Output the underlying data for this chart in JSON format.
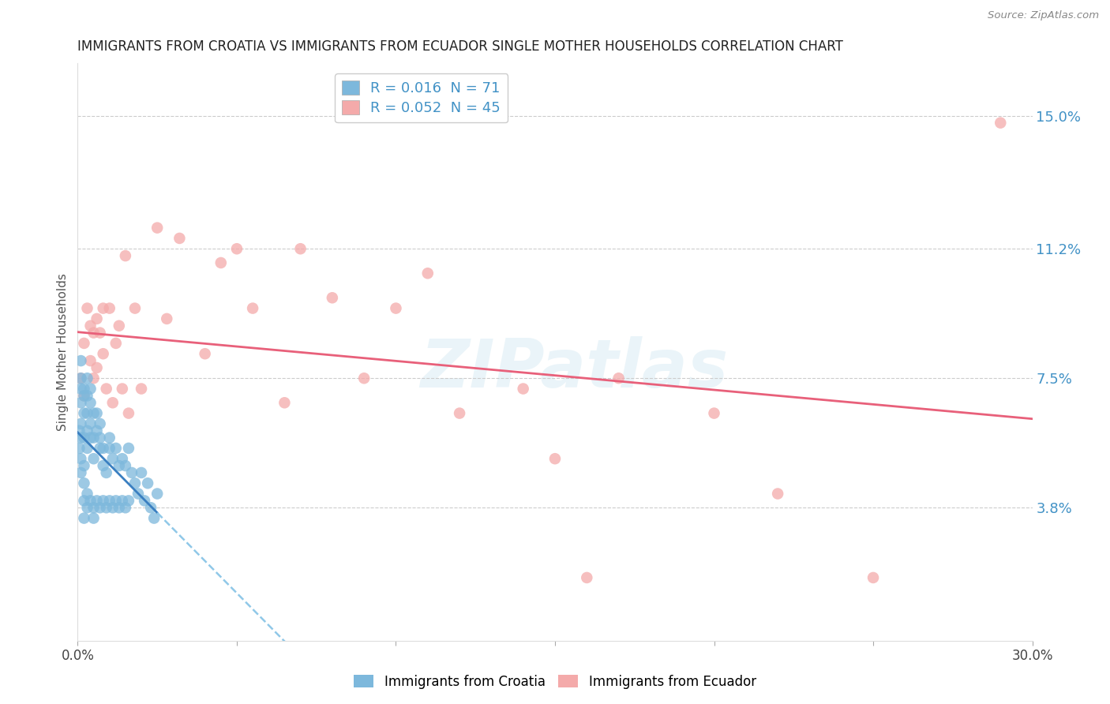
{
  "title": "IMMIGRANTS FROM CROATIA VS IMMIGRANTS FROM ECUADOR SINGLE MOTHER HOUSEHOLDS CORRELATION CHART",
  "source": "Source: ZipAtlas.com",
  "ylabel": "Single Mother Households",
  "xlim": [
    0.0,
    0.3
  ],
  "ylim": [
    0.0,
    0.165
  ],
  "ytick_vals": [
    0.038,
    0.075,
    0.112,
    0.15
  ],
  "ytick_labels": [
    "3.8%",
    "7.5%",
    "11.2%",
    "15.0%"
  ],
  "xtick_vals": [
    0.0,
    0.05,
    0.1,
    0.15,
    0.2,
    0.25,
    0.3
  ],
  "xtick_labels": [
    "0.0%",
    "",
    "",
    "",
    "",
    "",
    "30.0%"
  ],
  "croatia_color": "#7db8dc",
  "ecuador_color": "#f4aaaa",
  "croatia_trend_color": "#3a7fc1",
  "ecuador_trend_color": "#e8607a",
  "dashed_color": "#90c8e8",
  "R_croatia": 0.016,
  "N_croatia": 71,
  "R_ecuador": 0.052,
  "N_ecuador": 45,
  "watermark": "ZIPatlas",
  "legend_blue_label": "R = 0.016  N = 71",
  "legend_pink_label": "R = 0.052  N = 45",
  "bottom_label_croatia": "Immigrants from Croatia",
  "bottom_label_ecuador": "Immigrants from Ecuador",
  "croatia_x": [
    0.0005,
    0.0005,
    0.001,
    0.001,
    0.001,
    0.001,
    0.001,
    0.001,
    0.001,
    0.001,
    0.002,
    0.002,
    0.002,
    0.002,
    0.002,
    0.002,
    0.002,
    0.002,
    0.003,
    0.003,
    0.003,
    0.003,
    0.003,
    0.003,
    0.003,
    0.004,
    0.004,
    0.004,
    0.004,
    0.004,
    0.005,
    0.005,
    0.005,
    0.005,
    0.005,
    0.006,
    0.006,
    0.006,
    0.007,
    0.007,
    0.007,
    0.007,
    0.008,
    0.008,
    0.008,
    0.009,
    0.009,
    0.01,
    0.01,
    0.01,
    0.011,
    0.011,
    0.012,
    0.012,
    0.013,
    0.013,
    0.014,
    0.014,
    0.015,
    0.015,
    0.016,
    0.016,
    0.017,
    0.018,
    0.019,
    0.02,
    0.021,
    0.022,
    0.023,
    0.024,
    0.025
  ],
  "croatia_y": [
    0.055,
    0.06,
    0.052,
    0.058,
    0.062,
    0.068,
    0.072,
    0.048,
    0.075,
    0.08,
    0.045,
    0.05,
    0.058,
    0.065,
    0.07,
    0.072,
    0.04,
    0.035,
    0.055,
    0.06,
    0.065,
    0.07,
    0.075,
    0.042,
    0.038,
    0.058,
    0.062,
    0.068,
    0.072,
    0.04,
    0.052,
    0.058,
    0.065,
    0.038,
    0.035,
    0.06,
    0.065,
    0.04,
    0.055,
    0.058,
    0.062,
    0.038,
    0.05,
    0.055,
    0.04,
    0.048,
    0.038,
    0.055,
    0.058,
    0.04,
    0.052,
    0.038,
    0.055,
    0.04,
    0.05,
    0.038,
    0.052,
    0.04,
    0.05,
    0.038,
    0.055,
    0.04,
    0.048,
    0.045,
    0.042,
    0.048,
    0.04,
    0.045,
    0.038,
    0.035,
    0.042
  ],
  "ecuador_x": [
    0.001,
    0.002,
    0.002,
    0.003,
    0.004,
    0.004,
    0.005,
    0.005,
    0.006,
    0.006,
    0.007,
    0.008,
    0.008,
    0.009,
    0.01,
    0.011,
    0.012,
    0.013,
    0.014,
    0.015,
    0.016,
    0.018,
    0.02,
    0.025,
    0.028,
    0.032,
    0.04,
    0.045,
    0.05,
    0.055,
    0.065,
    0.07,
    0.08,
    0.09,
    0.1,
    0.11,
    0.12,
    0.14,
    0.15,
    0.16,
    0.17,
    0.2,
    0.22,
    0.25,
    0.29
  ],
  "ecuador_y": [
    0.075,
    0.07,
    0.085,
    0.095,
    0.08,
    0.09,
    0.075,
    0.088,
    0.092,
    0.078,
    0.088,
    0.082,
    0.095,
    0.072,
    0.095,
    0.068,
    0.085,
    0.09,
    0.072,
    0.11,
    0.065,
    0.095,
    0.072,
    0.118,
    0.092,
    0.115,
    0.082,
    0.108,
    0.112,
    0.095,
    0.068,
    0.112,
    0.098,
    0.075,
    0.095,
    0.105,
    0.065,
    0.072,
    0.052,
    0.018,
    0.075,
    0.065,
    0.042,
    0.018,
    0.148
  ]
}
